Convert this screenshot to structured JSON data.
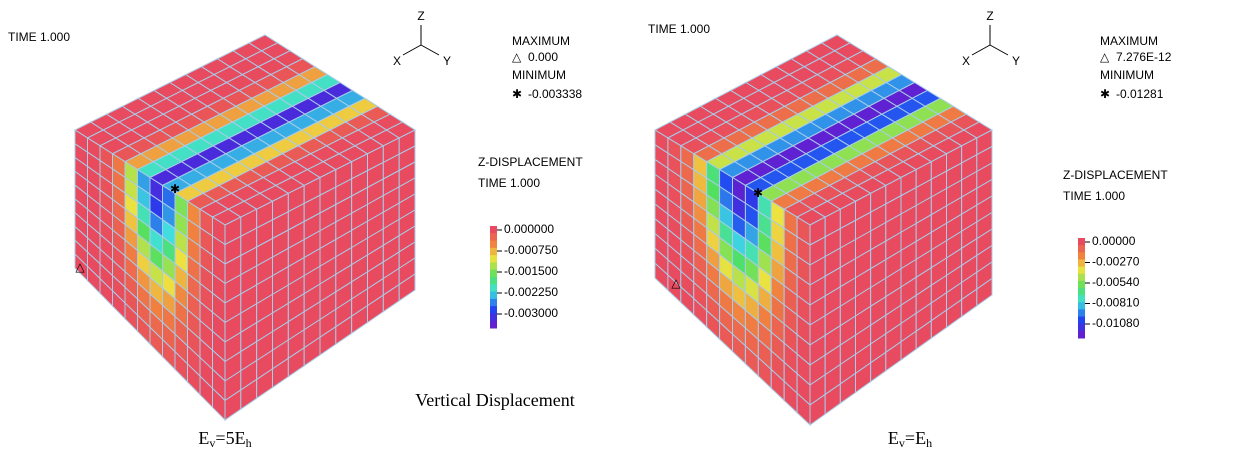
{
  "caption": "Vertical Displacement",
  "panels": [
    {
      "time_label": "TIME 1.000",
      "axes": {
        "z": "Z",
        "x": "X",
        "y": "Y"
      },
      "maximum_label": "MAXIMUM",
      "max_symbol": "△",
      "maximum_value": "0.000",
      "minimum_label": "MINIMUM",
      "min_symbol": "✱",
      "minimum_value": "-0.003338",
      "legend_title": "Z-DISPLACEMENT",
      "legend_time": "TIME 1.000",
      "legend_labels": [
        "0.000000",
        "-0.000750",
        "-0.001500",
        "-0.002250",
        "-0.003000"
      ],
      "subtitle": {
        "base": "E",
        "sub1": "v",
        "mid": "=5E",
        "sub2": "h"
      }
    },
    {
      "time_label": "TIME 1.000",
      "axes": {
        "z": "Z",
        "x": "X",
        "y": "Y"
      },
      "maximum_label": "MAXIMUM",
      "max_symbol": "△",
      "maximum_value": "7.276E-12",
      "minimum_label": "MINIMUM",
      "min_symbol": "✱",
      "minimum_value": "-0.01281",
      "legend_title": "Z-DISPLACEMENT",
      "legend_time": "TIME 1.000",
      "legend_labels": [
        "0.00000",
        "-0.00270",
        "-0.00540",
        "-0.00810",
        "-0.01080"
      ],
      "subtitle": {
        "base": "E",
        "sub1": "v",
        "mid": "=E",
        "sub2": "h"
      }
    }
  ]
}
